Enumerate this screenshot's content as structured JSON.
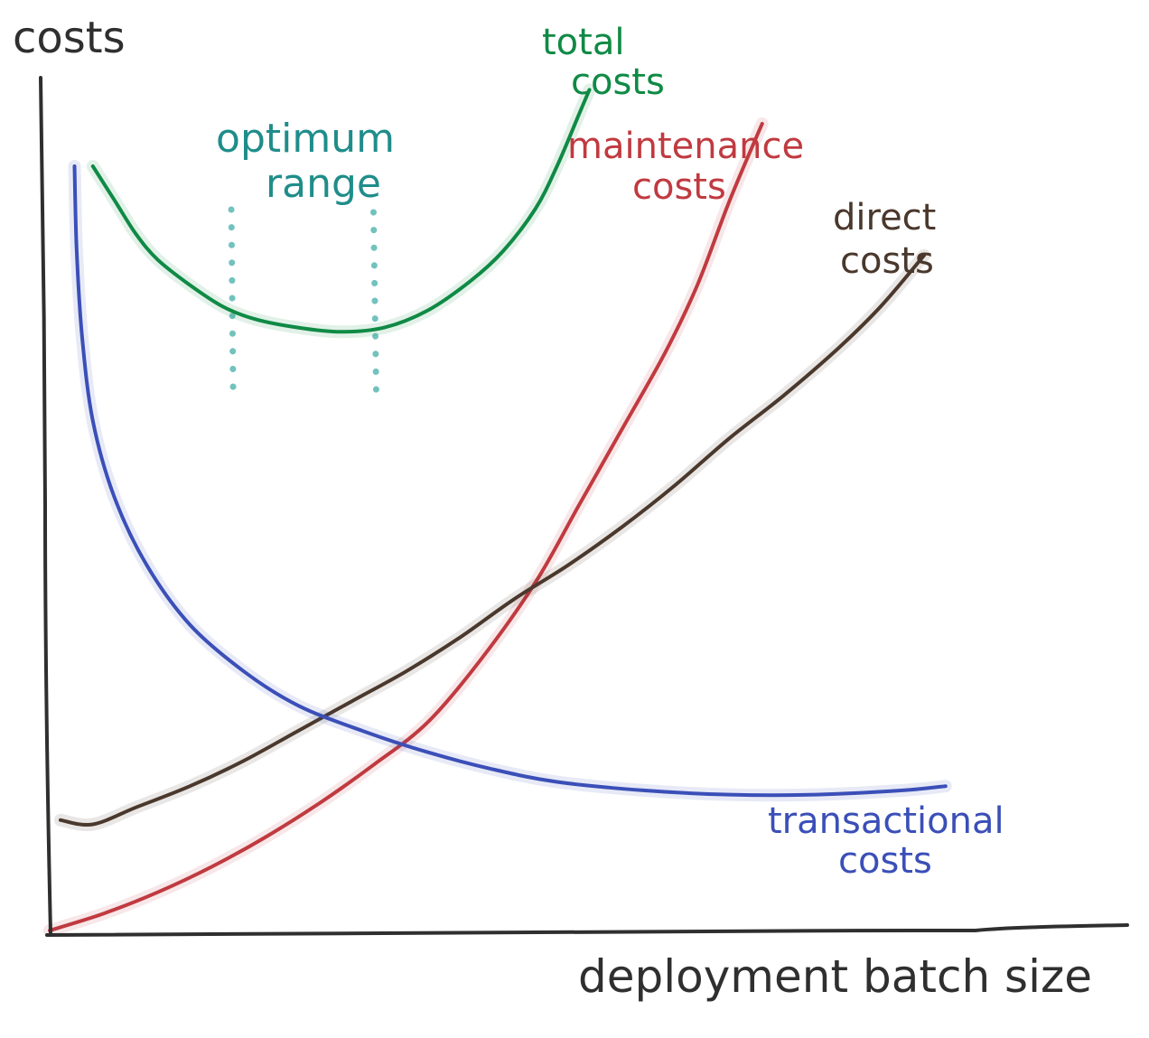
{
  "chart_data": {
    "type": "line",
    "ylabel": "costs",
    "xlabel": "deployment batch size",
    "grid": false,
    "axis_ticks": false,
    "colors": {
      "axis": "#2f2f2f",
      "total": "#0f8a45",
      "maintenance": "#c03a40",
      "direct": "#4a382c",
      "transactional": "#3b4fb8",
      "optimum": "#72c2bd"
    },
    "series": [
      {
        "key": "total",
        "label": [
          "total",
          "costs"
        ],
        "values": [
          [
            0.04,
            0.9
          ],
          [
            0.06,
            0.86
          ],
          [
            0.08,
            0.82
          ],
          [
            0.1,
            0.79
          ],
          [
            0.13,
            0.76
          ],
          [
            0.16,
            0.735
          ],
          [
            0.19,
            0.72
          ],
          [
            0.23,
            0.71
          ],
          [
            0.27,
            0.705
          ],
          [
            0.31,
            0.71
          ],
          [
            0.35,
            0.73
          ],
          [
            0.39,
            0.765
          ],
          [
            0.42,
            0.8
          ],
          [
            0.45,
            0.85
          ],
          [
            0.47,
            0.9
          ],
          [
            0.49,
            0.96
          ],
          [
            0.5,
            0.99
          ]
        ]
      },
      {
        "key": "maintenance",
        "label": [
          "maintenance",
          "costs"
        ],
        "values": [
          [
            0.0,
            0.0
          ],
          [
            0.05,
            0.02
          ],
          [
            0.1,
            0.045
          ],
          [
            0.15,
            0.075
          ],
          [
            0.2,
            0.11
          ],
          [
            0.25,
            0.15
          ],
          [
            0.3,
            0.195
          ],
          [
            0.35,
            0.245
          ],
          [
            0.4,
            0.32
          ],
          [
            0.45,
            0.41
          ],
          [
            0.49,
            0.5
          ],
          [
            0.53,
            0.59
          ],
          [
            0.57,
            0.68
          ],
          [
            0.6,
            0.76
          ],
          [
            0.63,
            0.86
          ],
          [
            0.66,
            0.95
          ]
        ]
      },
      {
        "key": "direct",
        "label": [
          "direct",
          "costs"
        ],
        "values": [
          [
            0.01,
            0.13
          ],
          [
            0.04,
            0.125
          ],
          [
            0.08,
            0.145
          ],
          [
            0.13,
            0.17
          ],
          [
            0.18,
            0.2
          ],
          [
            0.23,
            0.235
          ],
          [
            0.28,
            0.27
          ],
          [
            0.33,
            0.305
          ],
          [
            0.38,
            0.345
          ],
          [
            0.43,
            0.39
          ],
          [
            0.48,
            0.43
          ],
          [
            0.53,
            0.475
          ],
          [
            0.58,
            0.525
          ],
          [
            0.63,
            0.58
          ],
          [
            0.68,
            0.63
          ],
          [
            0.73,
            0.685
          ],
          [
            0.77,
            0.735
          ],
          [
            0.81,
            0.795
          ]
        ]
      },
      {
        "key": "transactional",
        "label": [
          "transactional",
          "costs"
        ],
        "values": [
          [
            0.023,
            0.9
          ],
          [
            0.025,
            0.8
          ],
          [
            0.03,
            0.7
          ],
          [
            0.04,
            0.6
          ],
          [
            0.06,
            0.51
          ],
          [
            0.09,
            0.43
          ],
          [
            0.13,
            0.36
          ],
          [
            0.18,
            0.305
          ],
          [
            0.23,
            0.265
          ],
          [
            0.29,
            0.235
          ],
          [
            0.35,
            0.21
          ],
          [
            0.41,
            0.19
          ],
          [
            0.47,
            0.175
          ],
          [
            0.55,
            0.165
          ],
          [
            0.63,
            0.16
          ],
          [
            0.71,
            0.16
          ],
          [
            0.79,
            0.165
          ],
          [
            0.83,
            0.17
          ]
        ]
      }
    ],
    "optimum_range": {
      "label": [
        "optimum",
        "range"
      ],
      "x": [
        0.17,
        0.3
      ]
    }
  }
}
